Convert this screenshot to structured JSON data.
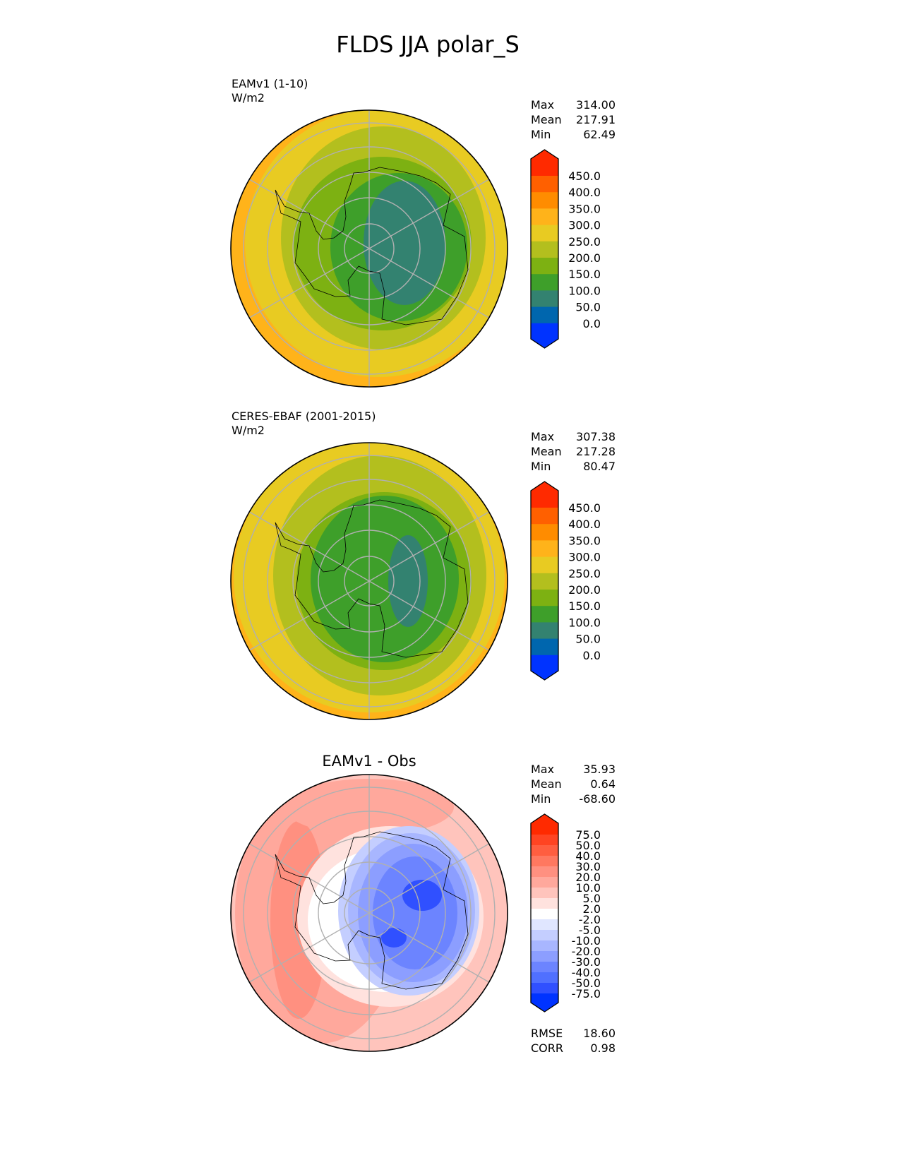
{
  "title": "FLDS JJA polar_S",
  "panels": [
    {
      "name": "EAMv1 (1-10)",
      "units": "W/m2",
      "stats": {
        "max_label": "Max",
        "max": "314.00",
        "mean_label": "Mean",
        "mean": "217.91",
        "min_label": "Min",
        "min": "62.49"
      }
    },
    {
      "name": "CERES-EBAF (2001-2015)",
      "units": "W/m2",
      "stats": {
        "max_label": "Max",
        "max": "307.38",
        "mean_label": "Mean",
        "mean": "217.28",
        "min_label": "Min",
        "min": "80.47"
      }
    },
    {
      "title": "EAMv1 - Obs",
      "stats": {
        "max_label": "Max",
        "max": "35.93",
        "mean_label": "Mean",
        "mean": "0.64",
        "min_label": "Min",
        "min": "-68.60"
      },
      "metrics": {
        "rmse_label": "RMSE",
        "rmse": "18.60",
        "corr_label": "CORR",
        "corr": "0.98"
      }
    }
  ],
  "colorbars": {
    "field": {
      "ticks": [
        "450.0",
        "400.0",
        "350.0",
        "300.0",
        "250.0",
        "200.0",
        "150.0",
        "100.0",
        "50.0",
        "0.0"
      ],
      "colors": [
        "#FF2A00",
        "#FF6000",
        "#FF8C00",
        "#FFB31A",
        "#E8CB22",
        "#B3BF1E",
        "#7DB112",
        "#3E9F2A",
        "#338270",
        "#0066AE",
        "#0033FF"
      ]
    },
    "diff": {
      "ticks": [
        "75.0",
        "50.0",
        "40.0",
        "30.0",
        "20.0",
        "10.0",
        "5.0",
        "2.0",
        "-2.0",
        "-5.0",
        "-10.0",
        "-20.0",
        "-30.0",
        "-40.0",
        "-50.0",
        "-75.0"
      ],
      "colors": [
        "#FF2A00",
        "#FF4422",
        "#FF5E40",
        "#FF7860",
        "#FF9080",
        "#FFA89C",
        "#FFC4BC",
        "#FFE2DE",
        "#FFFFFF",
        "#E0E6FF",
        "#C4CEFF",
        "#A8B6FF",
        "#8C9EFF",
        "#6C84FF",
        "#5070FF",
        "#3050FF",
        "#0033FF"
      ]
    }
  }
}
